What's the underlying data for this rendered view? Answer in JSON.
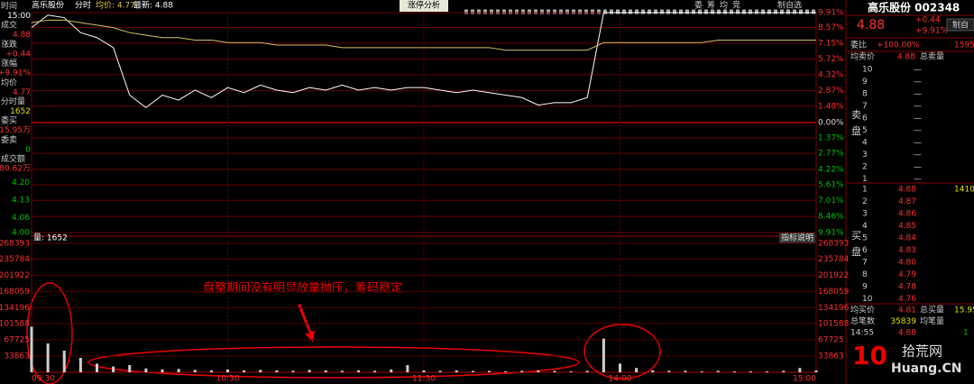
{
  "header": {
    "name": "高乐股份",
    "mode": "分时",
    "avg": "均价: 4.77",
    "last": "最新: 4.88"
  },
  "toolbar": {
    "tab": "涨停分析",
    "buttons": [
      "委",
      "筹",
      "均",
      "竞"
    ],
    "more": "制自选"
  },
  "info": [
    [
      "时间",
      "15:00"
    ],
    [
      "成交",
      "4.88"
    ],
    [
      "涨跌",
      "+0.44"
    ],
    [
      "涨幅",
      "+9.91%"
    ],
    [
      "均价",
      "4.77"
    ],
    [
      "分时量",
      "1652"
    ],
    [
      "委买",
      "15.95万"
    ],
    [
      "委卖",
      "0"
    ],
    [
      "成交额",
      "80.62万"
    ]
  ],
  "chart_data": [
    {
      "type": "line",
      "series": [
        {
          "color": "#ffffff",
          "values": [
            4.82,
            4.87,
            4.86,
            4.8,
            4.78,
            4.74,
            4.55,
            4.5,
            4.55,
            4.53,
            4.57,
            4.54,
            4.58,
            4.56,
            4.59,
            4.57,
            4.56,
            4.58,
            4.57,
            4.59,
            4.57,
            4.58,
            4.57,
            4.58,
            4.58,
            4.57,
            4.56,
            4.57,
            4.56,
            4.55,
            4.54,
            4.51,
            4.52,
            4.52,
            4.54,
            4.88,
            4.88,
            4.88,
            4.88,
            4.88,
            4.88,
            4.88,
            4.88,
            4.88,
            4.88,
            4.88,
            4.88,
            4.88,
            4.88
          ]
        },
        {
          "color": "#d8c060",
          "values": [
            4.84,
            4.85,
            4.85,
            4.84,
            4.83,
            4.82,
            4.8,
            4.79,
            4.78,
            4.78,
            4.77,
            4.77,
            4.76,
            4.76,
            4.76,
            4.75,
            4.75,
            4.75,
            4.75,
            4.74,
            4.74,
            4.74,
            4.74,
            4.74,
            4.74,
            4.74,
            4.74,
            4.74,
            4.74,
            4.73,
            4.73,
            4.73,
            4.73,
            4.73,
            4.73,
            4.76,
            4.76,
            4.76,
            4.76,
            4.76,
            4.76,
            4.76,
            4.77,
            4.77,
            4.77,
            4.77,
            4.77,
            4.77,
            4.77
          ]
        }
      ],
      "xlim": [
        0,
        48
      ],
      "xticks": [
        {
          "value": 0,
          "label": "09:30"
        },
        {
          "value": 12,
          "label": "10:30"
        },
        {
          "value": 24,
          "label": "11:30"
        },
        {
          "value": 36,
          "label": "14:00"
        },
        {
          "value": 48,
          "label": "15:00"
        }
      ],
      "ylim": [
        4.0,
        4.88
      ],
      "yticks": [
        {
          "value": 4.2,
          "label": "4.20"
        },
        {
          "value": 4.13,
          "label": "4.13"
        },
        {
          "value": 4.06,
          "label": "4.06"
        },
        {
          "value": 4.0,
          "label": "4.00"
        }
      ],
      "y2lim": [
        -9.91,
        9.91
      ],
      "y2ticks": [
        {
          "value": 9.91,
          "label": "9.91%"
        },
        {
          "value": 8.57,
          "label": "8.57%"
        },
        {
          "value": 7.15,
          "label": "7.15%"
        },
        {
          "value": 5.72,
          "label": "5.72%"
        },
        {
          "value": 4.32,
          "label": "4.32%"
        },
        {
          "value": 2.87,
          "label": "2.87%"
        },
        {
          "value": 1.48,
          "label": "1.48%"
        },
        {
          "value": 0,
          "label": "0.00%"
        },
        {
          "value": -1.37,
          "label": "1.37%"
        },
        {
          "value": -2.77,
          "label": "2.77%"
        },
        {
          "value": -4.22,
          "label": "4.22%"
        },
        {
          "value": -5.61,
          "label": "5.61%"
        },
        {
          "value": -7.01,
          "label": "7.01%"
        },
        {
          "value": -8.46,
          "label": "8.46%"
        },
        {
          "value": -9.91,
          "label": "9.91%"
        }
      ],
      "grid": true
    },
    {
      "type": "bar",
      "title": "量: 1652",
      "button": "指标说明",
      "color": "#cfcfcf",
      "values": [
        95000,
        60000,
        45000,
        30000,
        18000,
        12000,
        15000,
        8000,
        6000,
        7000,
        5000,
        4000,
        6000,
        4000,
        5000,
        4000,
        3000,
        5000,
        4000,
        3000,
        4000,
        3000,
        6000,
        15000,
        4000,
        3000,
        4000,
        3000,
        3000,
        2000,
        3000,
        4000,
        3000,
        2000,
        3000,
        70000,
        18000,
        9000,
        4000,
        3000,
        3000,
        2000,
        3000,
        2000,
        2000,
        2000,
        3000,
        9000,
        4000
      ],
      "ylim": [
        0,
        268393
      ],
      "yticks": [
        268393,
        235784,
        201922,
        168059,
        134196,
        101588,
        67725,
        33863
      ]
    }
  ],
  "annotation": "盘整期间没有明显放量抛压，筹码稳定",
  "quote": {
    "name": "高乐股份 002348",
    "price": "4.88",
    "change": "+0.44",
    "pct": "+9.91%",
    "button": "制自",
    "ratio_label": "委比",
    "ratio": "+100.00%",
    "ratio_diff": "1595"
  },
  "order_book": {
    "sell_header": [
      "均卖价",
      "4.88",
      "总卖量"
    ],
    "sell_side": [
      "卖",
      "盘"
    ],
    "sell": [
      {
        "level": "10",
        "volume": "—"
      },
      {
        "level": "9",
        "volume": "—"
      },
      {
        "level": "8",
        "volume": "—"
      },
      {
        "level": "7",
        "volume": "—"
      },
      {
        "level": "6",
        "volume": "—"
      },
      {
        "level": "5",
        "volume": "—"
      },
      {
        "level": "4",
        "volume": "—"
      },
      {
        "level": "3",
        "volume": "—"
      },
      {
        "level": "2",
        "volume": "—"
      },
      {
        "level": "1",
        "volume": "—"
      }
    ],
    "buy_side": [
      "买",
      "盘"
    ],
    "buy": [
      {
        "level": "1",
        "price": "4.88",
        "volume": "1410"
      },
      {
        "level": "2",
        "price": "4.87"
      },
      {
        "level": "3",
        "price": "4.86"
      },
      {
        "level": "4",
        "price": "4.85"
      },
      {
        "level": "5",
        "price": "4.84"
      },
      {
        "level": "6",
        "price": "4.83"
      },
      {
        "level": "7",
        "price": "4.80"
      },
      {
        "level": "8",
        "price": "4.79"
      },
      {
        "level": "9",
        "price": "4.78"
      },
      {
        "level": "10",
        "price": "4.76"
      }
    ]
  },
  "summary": [
    [
      "均买价",
      "4.81",
      "总买量",
      "15.95"
    ],
    [
      "总笔数",
      "35839",
      "均笔量"
    ],
    [
      "14:55",
      "4.88",
      "1"
    ]
  ],
  "watermark": {
    "num": "10",
    "site": "拾荒网",
    "domain": "Huang.CN"
  }
}
